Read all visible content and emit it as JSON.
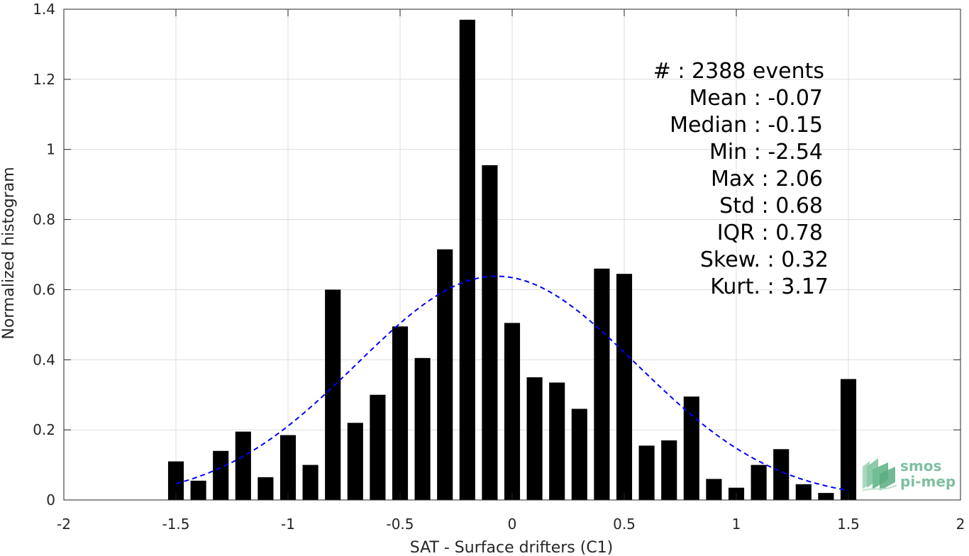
{
  "chart_data": {
    "type": "bar",
    "xlabel": "SAT - Surface drifters (C1)",
    "ylabel": "Normalized histogram",
    "xlim": [
      -2,
      2
    ],
    "ylim": [
      0,
      1.4
    ],
    "xticks": [
      -2,
      -1.5,
      -1,
      -0.5,
      0,
      0.5,
      1,
      1.5,
      2
    ],
    "xtick_labels": [
      "-2",
      "-1.5",
      "-1",
      "-0.5",
      "0",
      "0.5",
      "1",
      "1.5",
      "2"
    ],
    "yticks": [
      0,
      0.2,
      0.4,
      0.6,
      0.8,
      1,
      1.2,
      1.4
    ],
    "ytick_labels": [
      "0",
      "0.2",
      "0.4",
      "0.6",
      "0.8",
      "1",
      "1.2",
      "1.4"
    ],
    "grid": true,
    "bar_width": 0.07,
    "bar_color": "#000000",
    "x": [
      -1.5,
      -1.4,
      -1.3,
      -1.2,
      -1.1,
      -1.0,
      -0.9,
      -0.8,
      -0.7,
      -0.6,
      -0.5,
      -0.4,
      -0.3,
      -0.2,
      -0.1,
      0.0,
      0.1,
      0.2,
      0.3,
      0.4,
      0.5,
      0.6,
      0.7,
      0.8,
      0.9,
      1.0,
      1.1,
      1.2,
      1.3,
      1.4,
      1.5
    ],
    "values": [
      0.11,
      0.055,
      0.14,
      0.195,
      0.065,
      0.185,
      0.1,
      0.6,
      0.22,
      0.3,
      0.495,
      0.405,
      0.715,
      1.37,
      0.955,
      0.505,
      0.35,
      0.335,
      0.26,
      0.66,
      0.645,
      0.155,
      0.17,
      0.295,
      0.06,
      0.035,
      0.1,
      0.145,
      0.045,
      0.02,
      0.345
    ],
    "fit_curve": {
      "type": "gaussian",
      "mean": -0.07,
      "std": 0.625,
      "xrange": [
        -1.5,
        1.5
      ],
      "color": "#0000ff",
      "style": "dashed"
    },
    "stats": [
      {
        "label": "#  : 2388 events"
      },
      {
        "label": "Mean : -0.07"
      },
      {
        "label": "Median : -0.15"
      },
      {
        "label": "Min : -2.54"
      },
      {
        "label": "Max : 2.06"
      },
      {
        "label": "Std : 0.68"
      },
      {
        "label": "IQR : 0.78"
      },
      {
        "label": "Skew. : 0.32"
      },
      {
        "label": "Kurt. : 3.17"
      }
    ]
  },
  "logo": {
    "line1": "smos",
    "line2": "pi-mep",
    "color": "#7fbf9f"
  }
}
